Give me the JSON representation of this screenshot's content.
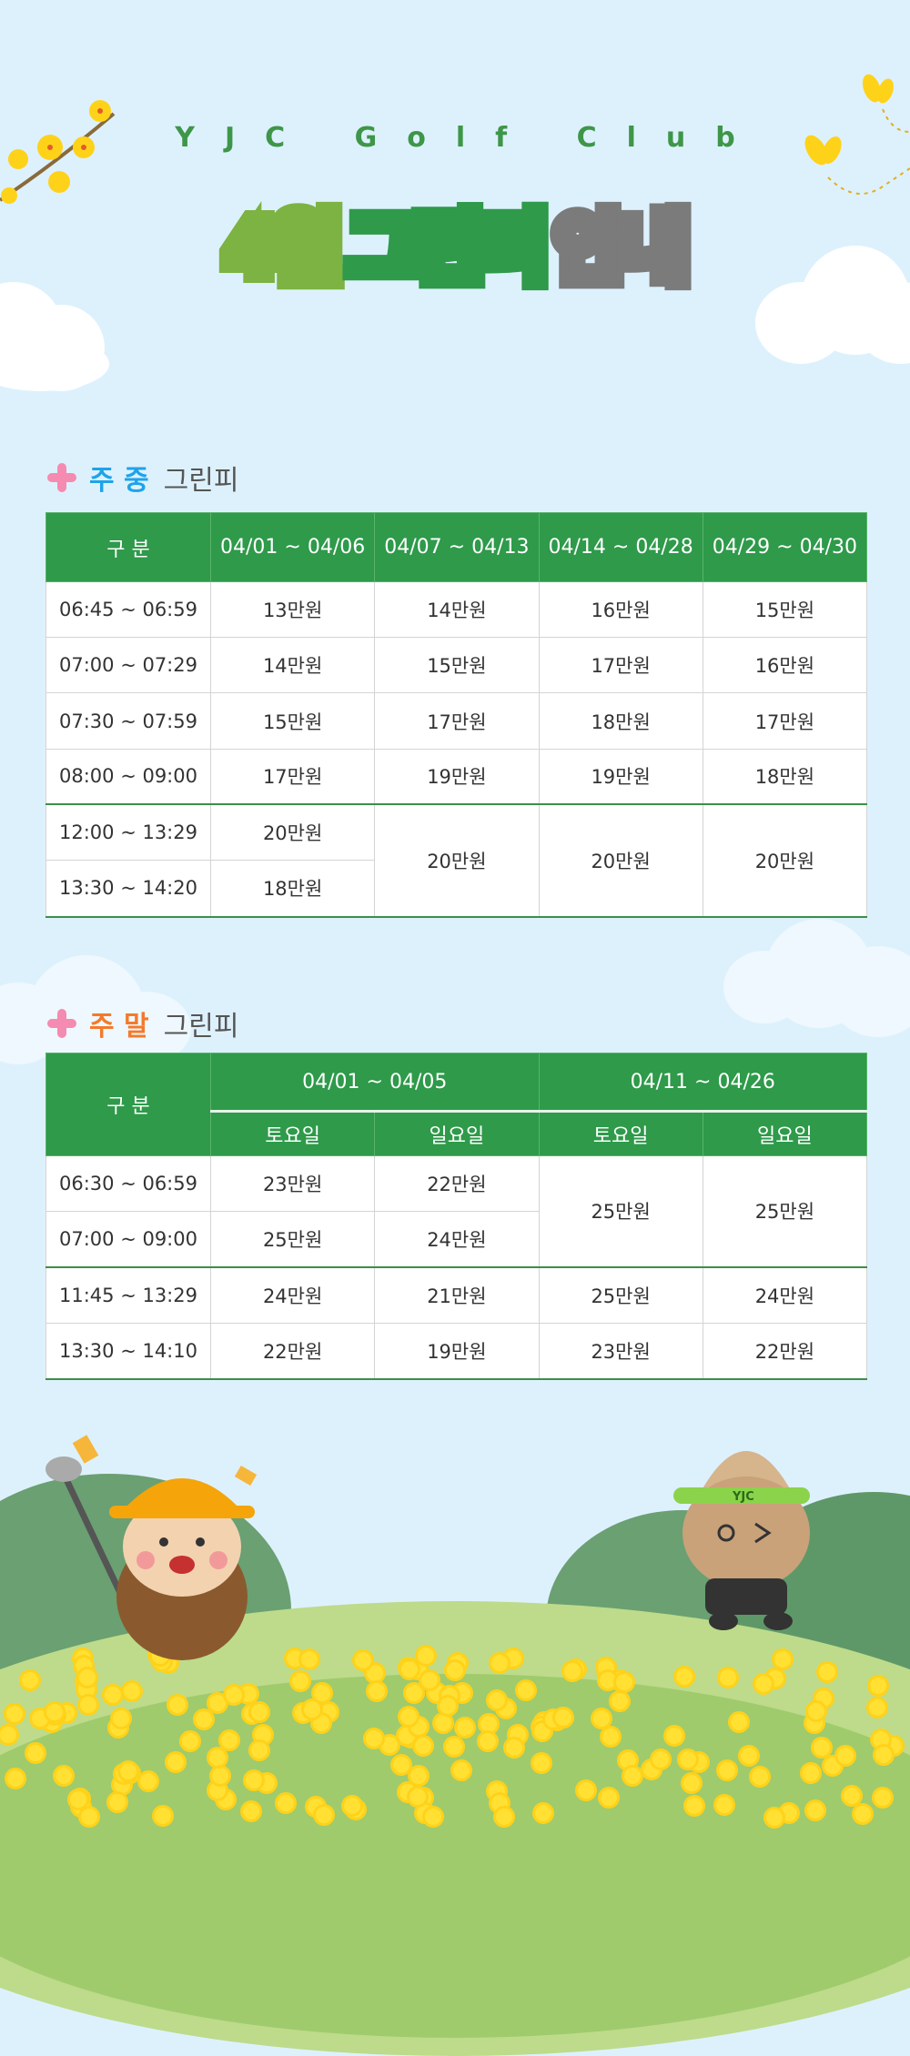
{
  "header": {
    "subtitle": "YJC Golf Club",
    "title_parts": [
      "4월",
      "그린피",
      "안내"
    ]
  },
  "colors": {
    "green": "#2e9a4a",
    "light_green": "#7cb342",
    "gray": "#7b7b7b",
    "weekday_accent": "#1fa3e8",
    "weekend_accent": "#f47a2b",
    "plus": "#f58bb0",
    "background": "#ddf1fd"
  },
  "weekday": {
    "label_prefix": "주 중",
    "label_suffix": "그린피",
    "columns": [
      "구 분",
      "04/01 ~ 04/06",
      "04/07 ~ 04/13",
      "04/14 ~ 04/28",
      "04/29 ~ 04/30"
    ],
    "rows": [
      {
        "time": "06:45 ~ 06:59",
        "prices": [
          "13만원",
          "14만원",
          "16만원",
          "15만원"
        ]
      },
      {
        "time": "07:00 ~ 07:29",
        "prices": [
          "14만원",
          "15만원",
          "17만원",
          "16만원"
        ]
      },
      {
        "time": "07:30 ~ 07:59",
        "prices": [
          "15만원",
          "17만원",
          "18만원",
          "17만원"
        ]
      },
      {
        "time": "08:00 ~ 09:00",
        "prices": [
          "17만원",
          "19만원",
          "19만원",
          "18만원"
        ]
      },
      {
        "time": "12:00 ~ 13:29",
        "prices": [
          "20만원",
          "20만원",
          "20만원",
          "20만원"
        ]
      },
      {
        "time": "13:30 ~ 14:20",
        "prices": [
          "18만원"
        ]
      }
    ]
  },
  "weekend": {
    "label_prefix": "주 말",
    "label_suffix": "그린피",
    "corner": "구 분",
    "periods": [
      "04/01 ~ 04/05",
      "04/11 ~ 04/26"
    ],
    "days": [
      "토요일",
      "일요일",
      "토요일",
      "일요일"
    ],
    "rows": [
      {
        "time": "06:30 ~ 06:59",
        "prices": [
          "23만원",
          "22만원",
          "25만원",
          "25만원"
        ]
      },
      {
        "time": "07:00 ~ 09:00",
        "prices": [
          "25만원",
          "24만원"
        ]
      },
      {
        "time": "11:45 ~ 13:29",
        "prices": [
          "24만원",
          "21만원",
          "25만원",
          "24만원"
        ]
      },
      {
        "time": "13:30 ~ 14:10",
        "prices": [
          "22만원",
          "19만원",
          "23만원",
          "22만원"
        ]
      }
    ]
  },
  "decorations": {
    "icons": [
      "forsythia-branch-icon",
      "butterfly-icon",
      "cloud-icon",
      "pinecone-mascot-golfer-icon",
      "pinecone-mascot-visor-icon",
      "yellow-flower-field"
    ],
    "mascot_visor_text": "YJC"
  }
}
